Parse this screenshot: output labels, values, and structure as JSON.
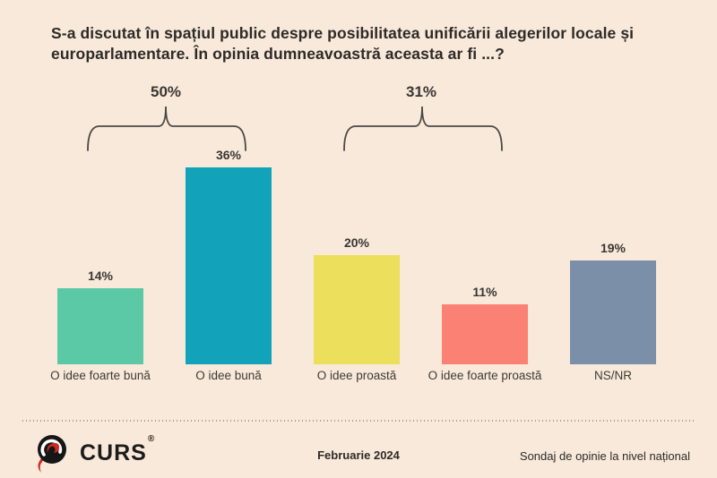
{
  "title": "S-a discutat în spațiul public despre posibilitatea unificării alegerilor locale și europarlamentare. În opinia dumneavoastră aceasta ar fi ...?",
  "chart_data": {
    "type": "bar",
    "categories": [
      "O idee foarte bună",
      "O idee bună",
      "O idee proastă",
      "O idee foarte proastă",
      "NS/NR"
    ],
    "values": [
      14,
      36,
      20,
      11,
      19
    ],
    "value_labels": [
      "14%",
      "36%",
      "20%",
      "11%",
      "19%"
    ],
    "unit": "%",
    "bar_colors": [
      "#5cc9a6",
      "#12a3ba",
      "#ecdf5b",
      "#fa8173",
      "#7b8fa9"
    ],
    "groups": [
      {
        "label": "50%",
        "covers": [
          "O idee foarte bună",
          "O idee bună"
        ]
      },
      {
        "label": "31%",
        "covers": [
          "O idee proastă",
          "O idee foarte proastă"
        ]
      }
    ],
    "title": "S-a discutat în spațiul public despre posibilitatea unificării alegerilor locale și europarlamentare. În opinia dumneavoastră aceasta ar fi ...?",
    "xlabel": "",
    "ylabel": "",
    "ylim": [
      0,
      40
    ],
    "grid": false,
    "legend": false
  },
  "footer": {
    "logo_text": "CURS",
    "logo_registered": "®",
    "date": "Februarie 2024",
    "note": "Sondaj de opinie la nivel național"
  },
  "colors": {
    "background": "#f8e9da",
    "text": "#2e2a27",
    "bracket": "#4c4843",
    "logo_red": "#ce2a21",
    "logo_black": "#161616"
  }
}
